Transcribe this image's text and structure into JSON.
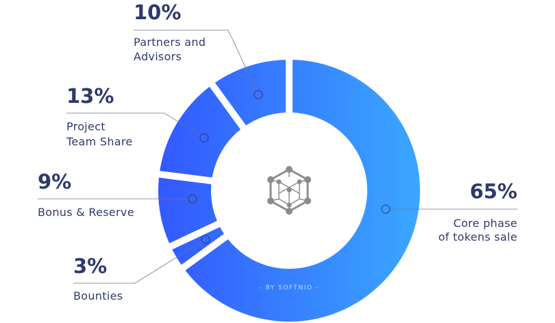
{
  "chart_data": {
    "type": "pie",
    "variant": "donut",
    "slices": [
      {
        "label_lines": [
          "Core phase",
          "of tokens sale"
        ],
        "percent_label": "65%",
        "value": 65
      },
      {
        "label_lines": [
          "Bounties"
        ],
        "percent_label": "3%",
        "value": 3
      },
      {
        "label_lines": [
          "Bonus & Reserve"
        ],
        "percent_label": "9%",
        "value": 9
      },
      {
        "label_lines": [
          "Project",
          "Team Share"
        ],
        "percent_label": "13%",
        "value": 13
      },
      {
        "label_lines": [
          "Partners and",
          "Advisors"
        ],
        "percent_label": "10%",
        "value": 10
      }
    ],
    "gradient_colors": [
      "#3358ff",
      "#3aa7ff"
    ],
    "legend": "none"
  },
  "credit": "- BY SOFTNIO -",
  "center_icon": "hexagon-network-icon",
  "colors": {
    "text": "#2f3a6b",
    "icon": "#8c8c8c",
    "leader": "#6c7490"
  }
}
